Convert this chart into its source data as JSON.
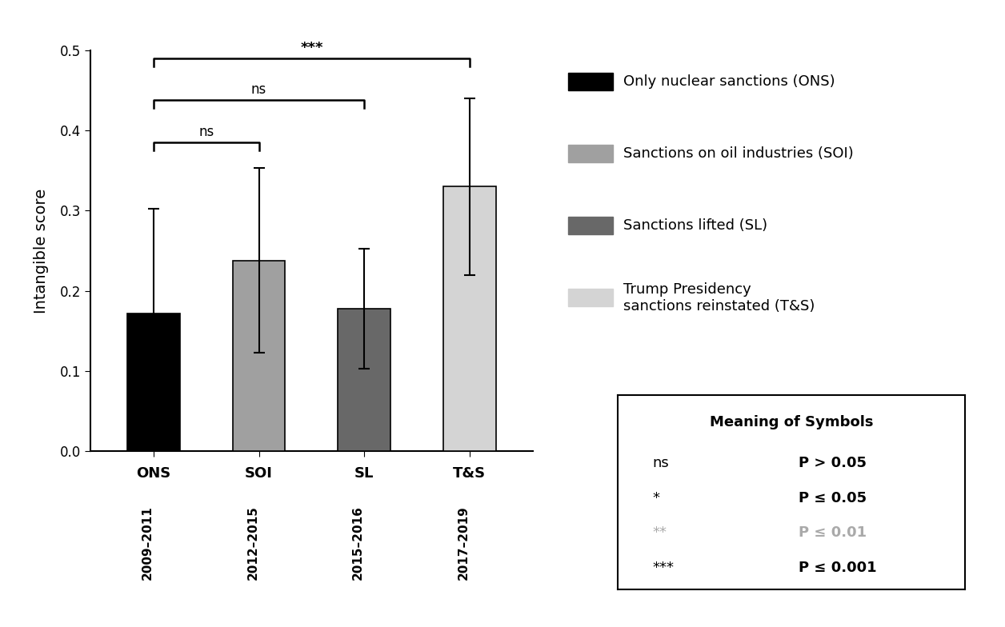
{
  "categories": [
    "ONS",
    "SOI",
    "SL",
    "T&S"
  ],
  "year_labels": [
    "2009–2011",
    "2012–2015",
    "2015–2016",
    "2017–2019"
  ],
  "values": [
    0.172,
    0.238,
    0.178,
    0.33
  ],
  "errors": [
    0.13,
    0.115,
    0.075,
    0.11
  ],
  "bar_colors": [
    "#000000",
    "#a0a0a0",
    "#686868",
    "#d4d4d4"
  ],
  "bar_edge_colors": [
    "#000000",
    "#000000",
    "#000000",
    "#000000"
  ],
  "ylabel": "Intangible score",
  "ylim": [
    0.0,
    0.5
  ],
  "yticks": [
    0.0,
    0.1,
    0.2,
    0.3,
    0.4,
    0.5
  ],
  "legend_labels": [
    "Only nuclear sanctions (ONS)",
    "Sanctions on oil industries (SOI)",
    "Sanctions lifted (SL)",
    "Trump Presidency\nsanctions reinstated (T&S)"
  ],
  "legend_colors": [
    "#000000",
    "#a0a0a0",
    "#686868",
    "#d4d4d4"
  ],
  "symbol_table": {
    "title": "Meaning of Symbols",
    "rows": [
      {
        "symbol": "ns",
        "meaning": "P > 0.05"
      },
      {
        "symbol": "*",
        "meaning": "P ≤ 0.05"
      },
      {
        "symbol": "**",
        "meaning": "P ≤ 0.01"
      },
      {
        "symbol": "***",
        "meaning": "P ≤ 0.001"
      }
    ],
    "gray_row": 2
  }
}
